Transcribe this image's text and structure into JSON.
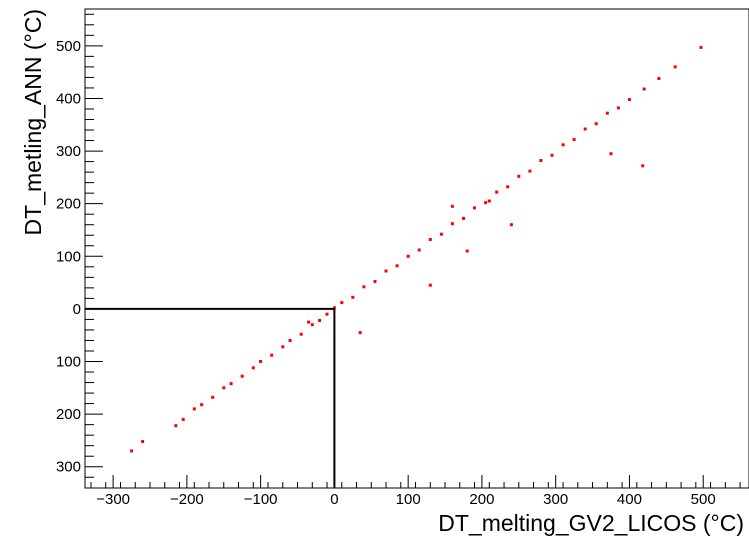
{
  "chart_data": {
    "type": "scatter",
    "title": "",
    "xlabel": "DT_melting_GV2_LICOS (°C)",
    "ylabel": "DT_metling_ANN (°C)",
    "xlim": [
      -335,
      565
    ],
    "ylim": [
      -330,
      570
    ],
    "grid": false,
    "legend": "none",
    "x_ticks": [
      {
        "value": -300,
        "label": "−300"
      },
      {
        "value": -200,
        "label": "−200"
      },
      {
        "value": -100,
        "label": "−100"
      },
      {
        "value": 0,
        "label": "0"
      },
      {
        "value": 100,
        "label": "100"
      },
      {
        "value": 200,
        "label": "200"
      },
      {
        "value": 300,
        "label": "300"
      },
      {
        "value": 400,
        "label": "400"
      },
      {
        "value": 500,
        "label": "500"
      }
    ],
    "y_ticks": [
      {
        "value": 500,
        "label": "500"
      },
      {
        "value": 400,
        "label": "400"
      },
      {
        "value": 300,
        "label": "300"
      },
      {
        "value": 200,
        "label": "200"
      },
      {
        "value": 100,
        "label": "100"
      },
      {
        "value": 0,
        "label": "0"
      },
      {
        "value": -100,
        "label": "100"
      },
      {
        "value": -200,
        "label": "200"
      },
      {
        "value": -300,
        "label": "300"
      }
    ],
    "series": [
      {
        "marker_color": "#ff0000",
        "points": [
          [
            -275,
            -270
          ],
          [
            -260,
            -252
          ],
          [
            -215,
            -222
          ],
          [
            -205,
            -210
          ],
          [
            -190,
            -190
          ],
          [
            -180,
            -182
          ],
          [
            -165,
            -168
          ],
          [
            -150,
            -150
          ],
          [
            -140,
            -142
          ],
          [
            -125,
            -128
          ],
          [
            -110,
            -112
          ],
          [
            -100,
            -100
          ],
          [
            -85,
            -88
          ],
          [
            -70,
            -72
          ],
          [
            -60,
            -60
          ],
          [
            -45,
            -48
          ],
          [
            -30,
            -30
          ],
          [
            -20,
            -22
          ],
          [
            -10,
            -10
          ],
          [
            0,
            2
          ],
          [
            10,
            12
          ],
          [
            25,
            22
          ],
          [
            40,
            42
          ],
          [
            55,
            52
          ],
          [
            70,
            72
          ],
          [
            85,
            82
          ],
          [
            100,
            100
          ],
          [
            115,
            112
          ],
          [
            130,
            132
          ],
          [
            145,
            142
          ],
          [
            160,
            162
          ],
          [
            175,
            172
          ],
          [
            190,
            192
          ],
          [
            205,
            202
          ],
          [
            220,
            222
          ],
          [
            235,
            232
          ],
          [
            250,
            252
          ],
          [
            265,
            262
          ],
          [
            280,
            282
          ],
          [
            295,
            292
          ],
          [
            310,
            312
          ],
          [
            325,
            322
          ],
          [
            340,
            342
          ],
          [
            355,
            352
          ],
          [
            370,
            372
          ],
          [
            385,
            382
          ],
          [
            400,
            398
          ],
          [
            420,
            418
          ],
          [
            440,
            438
          ],
          [
            462,
            460
          ],
          [
            497,
            497
          ],
          [
            375,
            295
          ],
          [
            418,
            272
          ],
          [
            210,
            205
          ],
          [
            240,
            160
          ],
          [
            180,
            110
          ],
          [
            130,
            45
          ],
          [
            160,
            195
          ],
          [
            35,
            -45
          ],
          [
            -35,
            -25
          ]
        ]
      }
    ],
    "annotations": [
      {
        "type": "guide-lines",
        "description": "lines at x=0 and y=0",
        "color": "#000000"
      }
    ]
  }
}
